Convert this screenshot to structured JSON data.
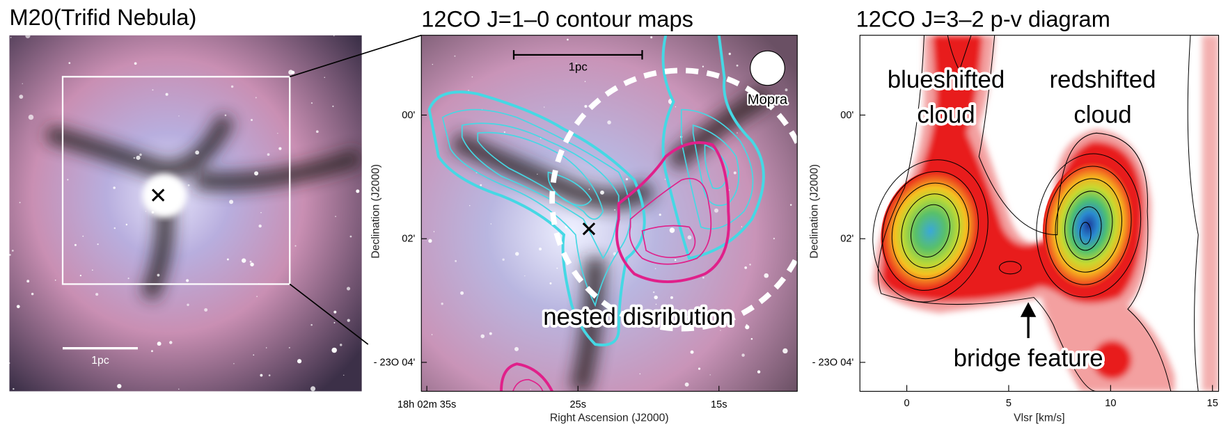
{
  "panels": [
    {
      "title": "M20(Trifid Nebula)",
      "scale_bar": "1pc"
    },
    {
      "title": "12CO J=1–0 contour maps",
      "scale_bar": "1pc",
      "beam": "Mopra",
      "annotation": "nested disribution",
      "y_label": "Declination (J2000)",
      "y_ticks": [
        "00'",
        "02'",
        "- 23O 04'"
      ],
      "x_label": "Right Ascension (J2000)",
      "x_ticks": [
        "18h 02m 35s",
        "25s",
        "15s"
      ]
    },
    {
      "title": "12CO J=3–2 p-v diagram",
      "annotations": [
        [
          "blueshifted",
          "cloud"
        ],
        [
          "redshifted",
          "cloud"
        ],
        [
          "bridge feature"
        ]
      ],
      "y_label": "Declination (J2000)",
      "y_ticks": [
        "00'",
        "02'",
        "- 23O 04'"
      ],
      "x_label": "Vlsr [km/s]",
      "xlim": [
        -2.3,
        15.3
      ],
      "xticks": [
        0,
        5,
        10,
        15
      ]
    }
  ]
}
